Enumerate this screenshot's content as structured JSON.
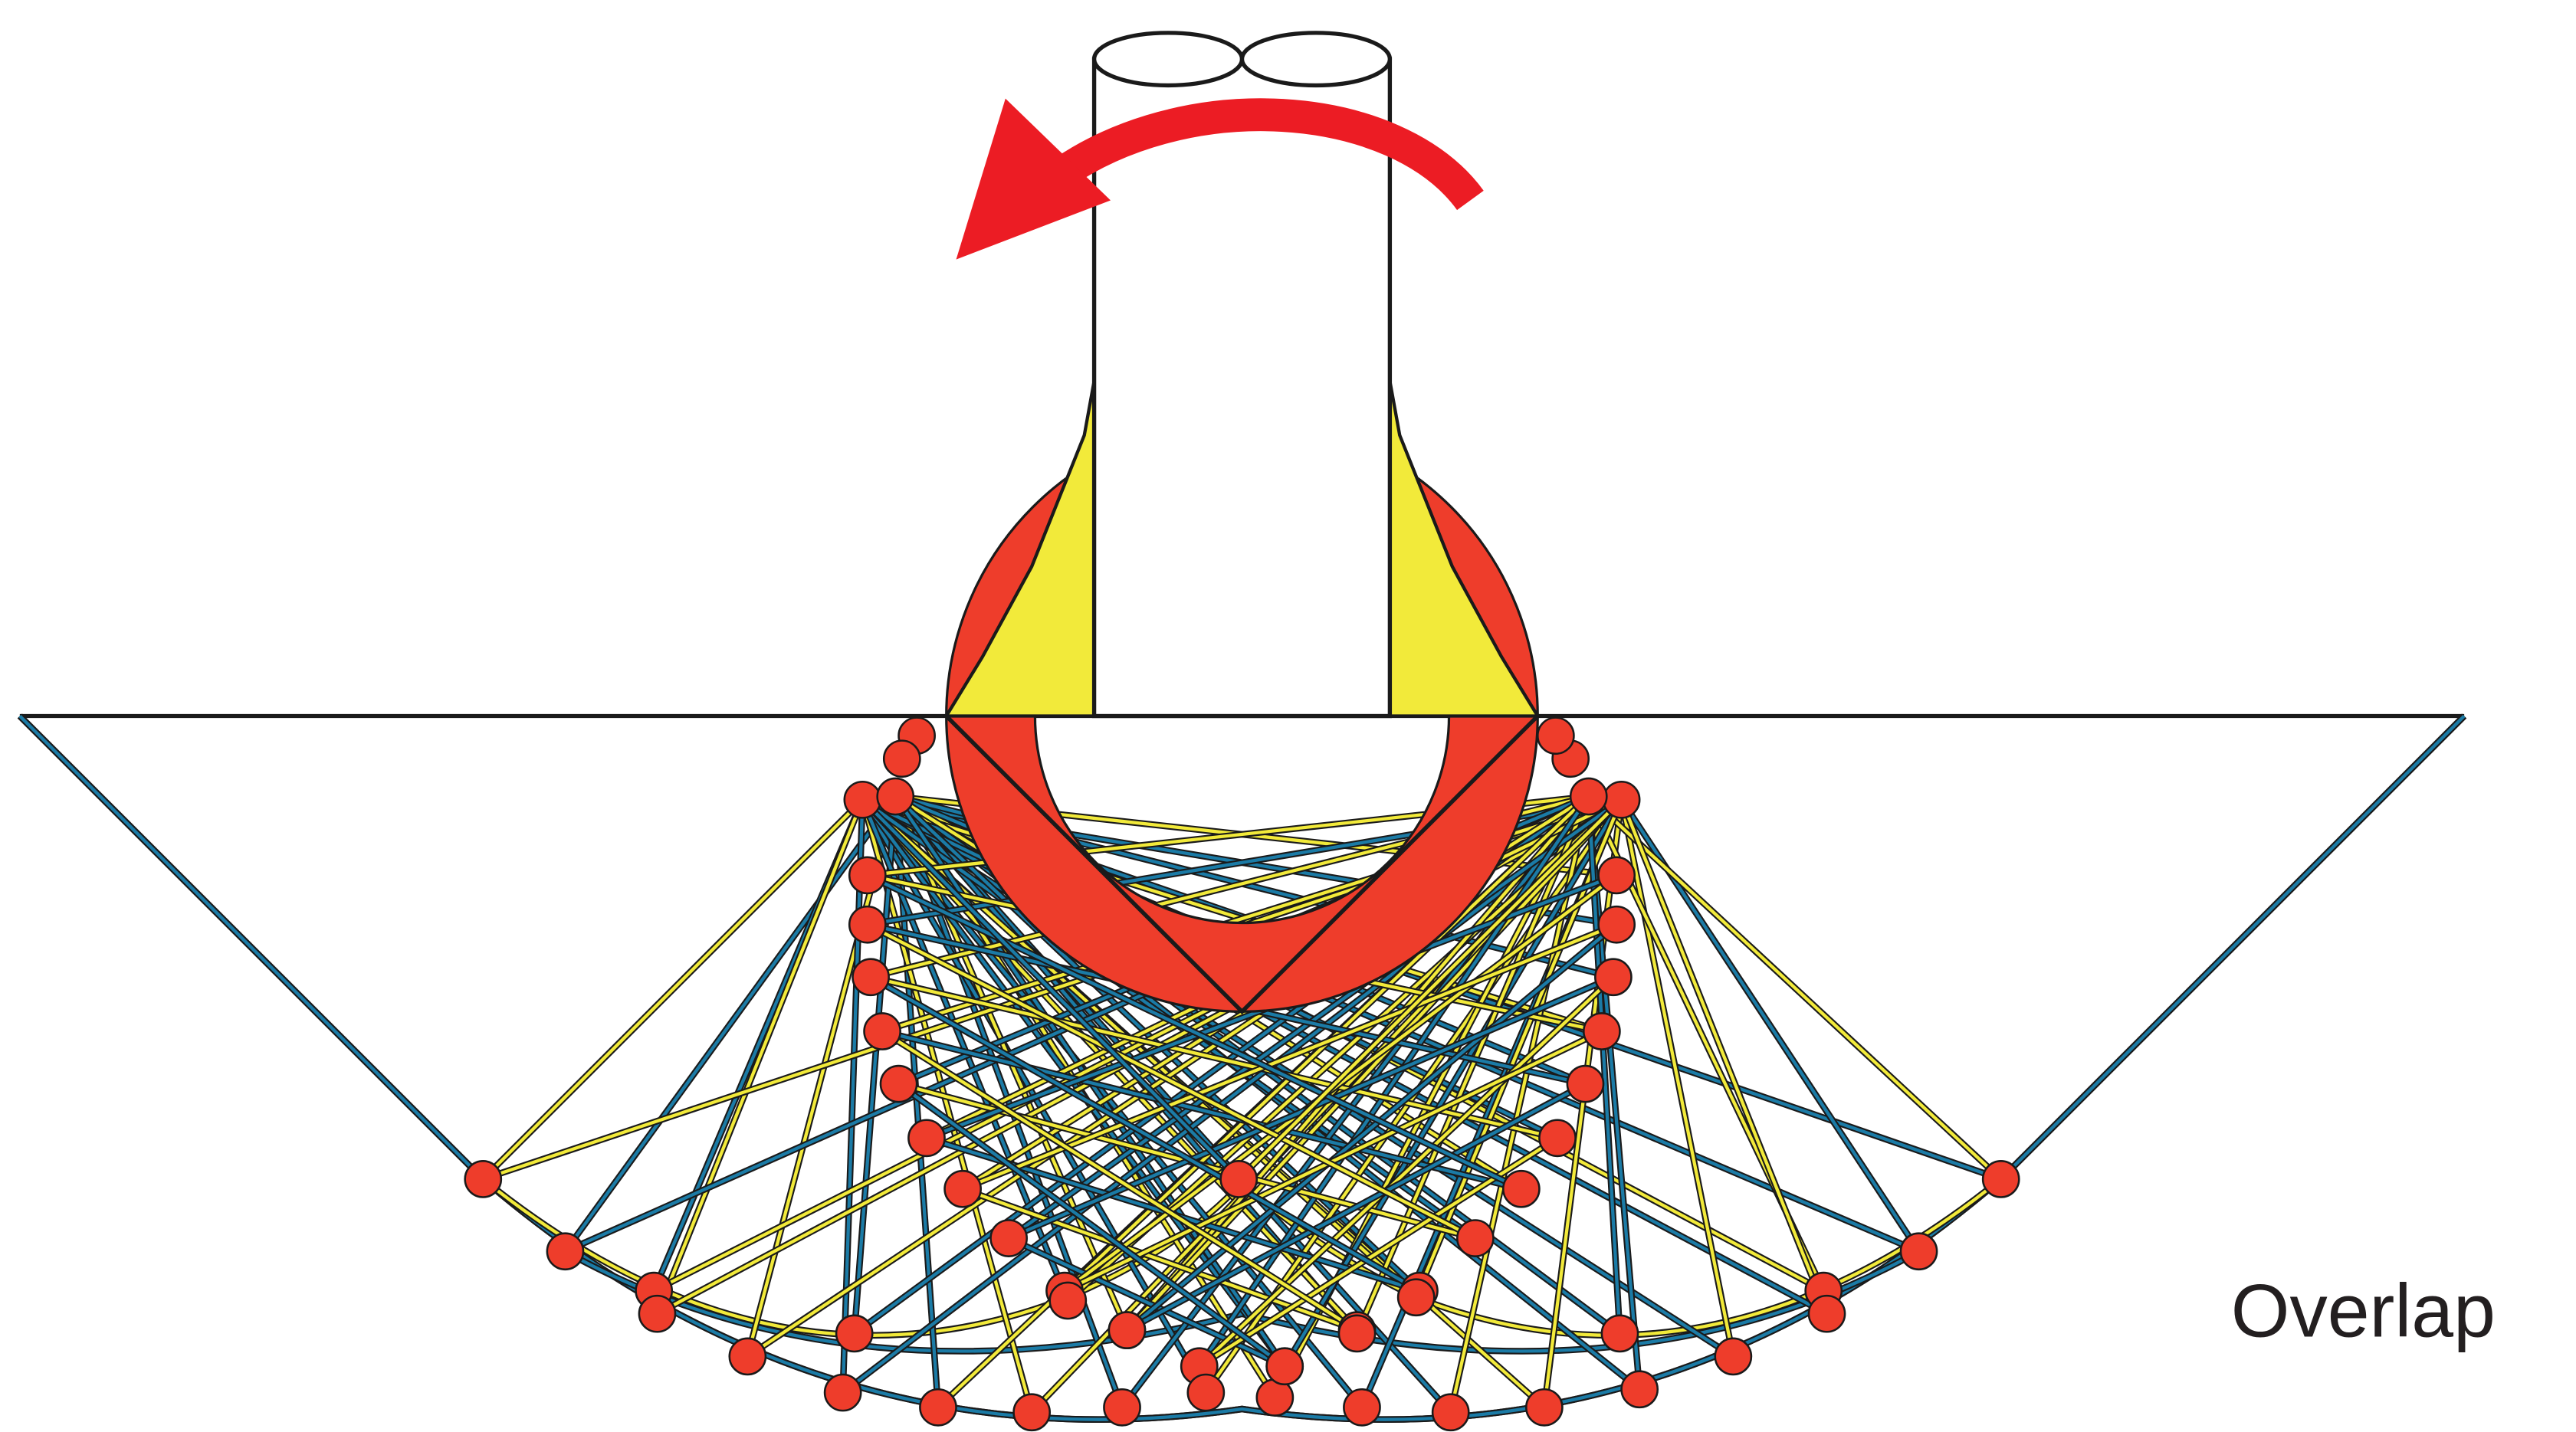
{
  "label": "Overlap",
  "colors": {
    "outline": "#1a1a1a",
    "ring": "#ee3d2b",
    "weld": "#f2ea3a",
    "arrow": "#ec1c24",
    "strand_blue": "#1b7ba6",
    "strand_yellow": "#f2ea3a",
    "node": "#ee3d2b",
    "label": "#231f20"
  }
}
